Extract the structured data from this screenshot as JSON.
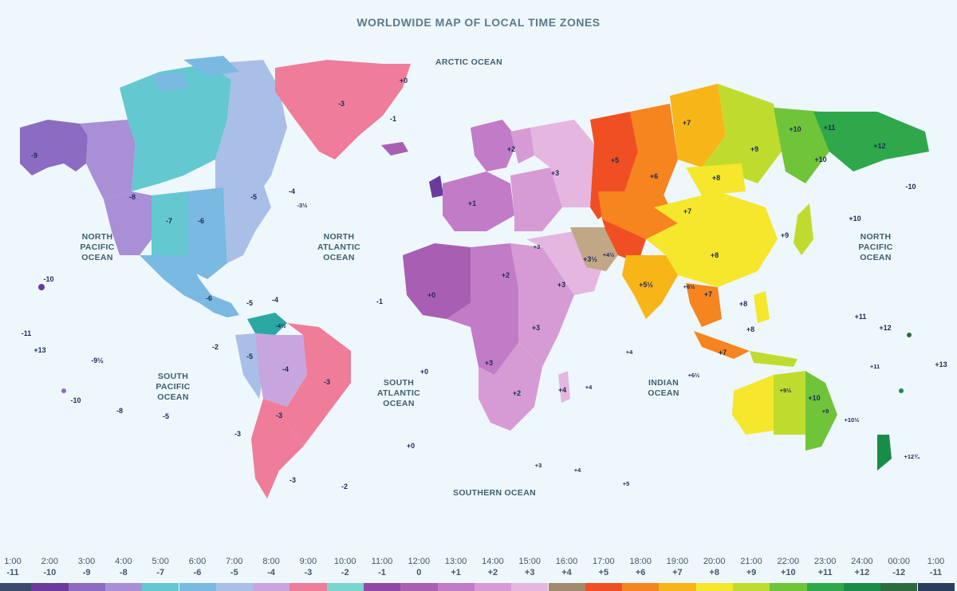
{
  "title": "WORLDWIDE MAP OF LOCAL TIME ZONES",
  "oceans": [
    {
      "id": "arctic",
      "lines": [
        "ARCTIC OCEAN"
      ]
    },
    {
      "id": "npac-w",
      "lines": [
        "NORTH",
        "PACIFIC",
        "OCEAN"
      ]
    },
    {
      "id": "natl",
      "lines": [
        "NORTH",
        "ATLANTIC",
        "OCEAN"
      ]
    },
    {
      "id": "npac-e",
      "lines": [
        "NORTH",
        "PACIFIC",
        "OCEAN"
      ]
    },
    {
      "id": "spac",
      "lines": [
        "SOUTH",
        "PACIFIC",
        "OCEAN"
      ]
    },
    {
      "id": "satl",
      "lines": [
        "SOUTH",
        "ATLANTIC",
        "OCEAN"
      ]
    },
    {
      "id": "indian",
      "lines": [
        "INDIAN",
        "OCEAN"
      ]
    },
    {
      "id": "southern",
      "lines": [
        "SOUTHERN OCEAN"
      ]
    }
  ],
  "zone_labels": [
    "-9",
    "-8",
    "-7",
    "-6",
    "-5",
    "-4",
    "-3",
    "-3½",
    "-1",
    "+0",
    "-10",
    "-11",
    "+13",
    "-9½",
    "-10",
    "-8",
    "-5",
    "-6",
    "-5",
    "-4",
    "-4½",
    "-5",
    "-4",
    "-3",
    "-3",
    "-3",
    "-2",
    "+0",
    "+1",
    "+2",
    "+3",
    "+2",
    "+0",
    "-1",
    "+3",
    "+4",
    "+3",
    "+2",
    "+3½",
    "+3",
    "+5",
    "+4½",
    "+5½",
    "+6",
    "+7",
    "+8",
    "+9",
    "+10",
    "+11",
    "+12",
    "+10",
    "-10",
    "+10",
    "+9",
    "+8",
    "+7",
    "+6½",
    "+8",
    "+7",
    "+7",
    "+9½",
    "+10",
    "+8",
    "+10½",
    "+11",
    "+12",
    "+12¾",
    "+13",
    "+4",
    "+3",
    "-3",
    "-2",
    "+0",
    "+4",
    "+5",
    "+6½",
    "+4",
    "+3",
    "+9",
    "+11"
  ],
  "legend": [
    {
      "time": "1:00",
      "offset": "-11",
      "color": "#3b4b6e"
    },
    {
      "time": "2:00",
      "offset": "-10",
      "color": "#6a3a9c"
    },
    {
      "time": "3:00",
      "offset": "-9",
      "color": "#8c6bc2"
    },
    {
      "time": "4:00",
      "offset": "-8",
      "color": "#a98fd6"
    },
    {
      "time": "5:00",
      "offset": "-7",
      "color": "#63c8cf"
    },
    {
      "time": "6:00",
      "offset": "-6",
      "color": "#79b9e2"
    },
    {
      "time": "7:00",
      "offset": "-5",
      "color": "#a9bfe8"
    },
    {
      "time": "8:00",
      "offset": "-4",
      "color": "#c7a6dd"
    },
    {
      "time": "9:00",
      "offset": "-3",
      "color": "#ef7c98"
    },
    {
      "time": "10:00",
      "offset": "-2",
      "color": "#7ad6cf"
    },
    {
      "time": "11:00",
      "offset": "-1",
      "color": "#8f4aa5"
    },
    {
      "time": "12:00",
      "offset": "0",
      "color": "#a85fb3"
    },
    {
      "time": "13:00",
      "offset": "+1",
      "color": "#c27bc6"
    },
    {
      "time": "14:00",
      "offset": "+2",
      "color": "#d69bd4"
    },
    {
      "time": "15:00",
      "offset": "+3",
      "color": "#e4b6e0"
    },
    {
      "time": "16:00",
      "offset": "+4",
      "color": "#a08a6e"
    },
    {
      "time": "17:00",
      "offset": "+5",
      "color": "#f04f24"
    },
    {
      "time": "18:00",
      "offset": "+6",
      "color": "#f6841f"
    },
    {
      "time": "19:00",
      "offset": "+7",
      "color": "#f8b518"
    },
    {
      "time": "20:00",
      "offset": "+8",
      "color": "#f4e72c"
    },
    {
      "time": "21:00",
      "offset": "+9",
      "color": "#bfdc2e"
    },
    {
      "time": "22:00",
      "offset": "+10",
      "color": "#6fc43a"
    },
    {
      "time": "23:00",
      "offset": "+11",
      "color": "#2ea84a"
    },
    {
      "time": "24:00",
      "offset": "+12",
      "color": "#1a8c4a"
    },
    {
      "time": "00:00",
      "offset": "-12",
      "color": "#2e6a3f"
    },
    {
      "time": "1:00",
      "offset": "-11",
      "color": "#2a3d5c"
    }
  ]
}
